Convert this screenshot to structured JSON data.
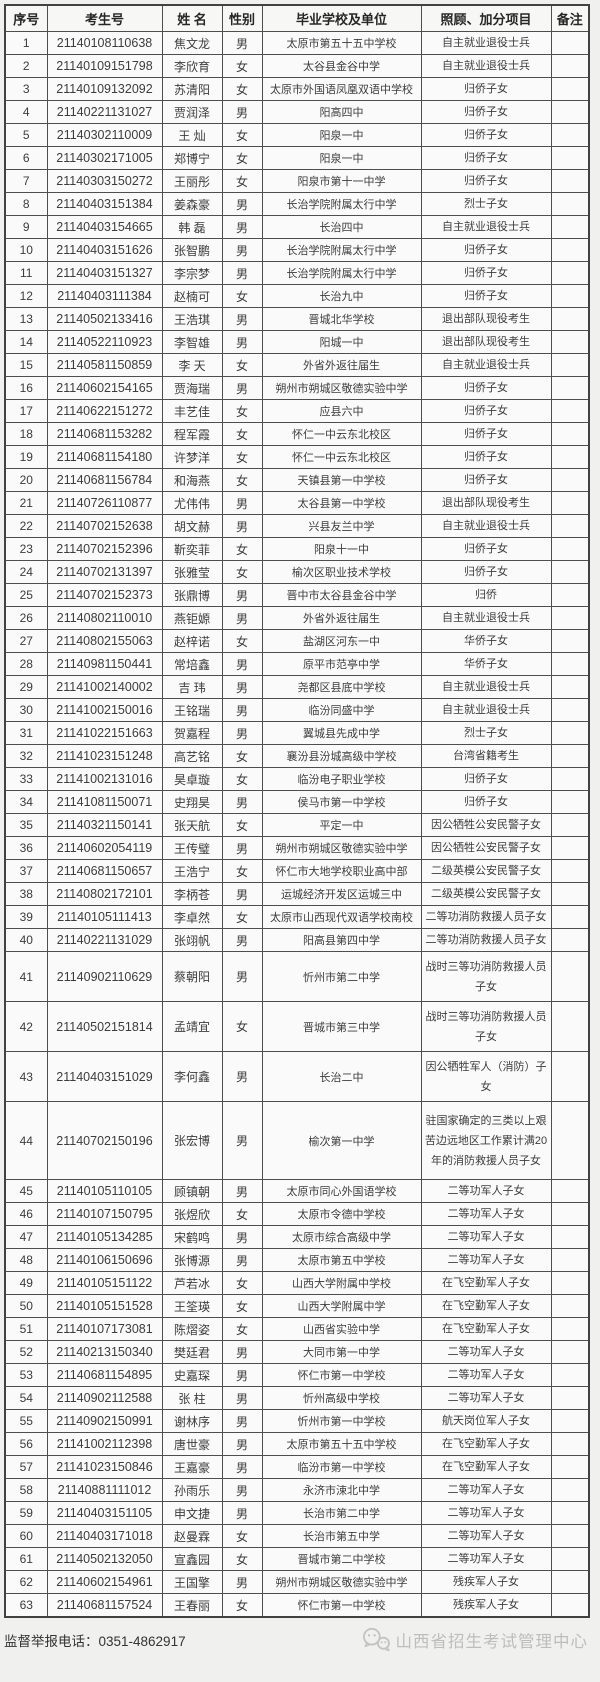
{
  "table": {
    "keys": [
      "no",
      "id",
      "name",
      "gender",
      "school",
      "bonus",
      "note"
    ],
    "headers": [
      "序号",
      "考生号",
      "姓 名",
      "性别",
      "毕业学校及单位",
      "照顾、加分项目",
      "备注"
    ],
    "rows": [
      {
        "no": "1",
        "id": "21140108110638",
        "name": "焦文龙",
        "gender": "男",
        "school": "太原市第五十五中学校",
        "bonus": "自主就业退役士兵",
        "note": ""
      },
      {
        "no": "2",
        "id": "21140109151798",
        "name": "李欣育",
        "gender": "女",
        "school": "太谷县金谷中学",
        "bonus": "自主就业退役士兵",
        "note": ""
      },
      {
        "no": "3",
        "id": "21140109132092",
        "name": "苏清阳",
        "gender": "女",
        "school": "太原市外国语凤凰双语中学校",
        "bonus": "归侨子女",
        "note": ""
      },
      {
        "no": "4",
        "id": "21140221131027",
        "name": "贾润泽",
        "gender": "男",
        "school": "阳高四中",
        "bonus": "归侨子女",
        "note": ""
      },
      {
        "no": "5",
        "id": "21140302110009",
        "name": "王 灿",
        "gender": "女",
        "school": "阳泉一中",
        "bonus": "归侨子女",
        "note": ""
      },
      {
        "no": "6",
        "id": "21140302171005",
        "name": "郑博宁",
        "gender": "女",
        "school": "阳泉一中",
        "bonus": "归侨子女",
        "note": ""
      },
      {
        "no": "7",
        "id": "21140303150272",
        "name": "王丽彤",
        "gender": "女",
        "school": "阳泉市第十一中学",
        "bonus": "归侨子女",
        "note": ""
      },
      {
        "no": "8",
        "id": "21140403151384",
        "name": "姜森豪",
        "gender": "男",
        "school": "长治学院附属太行中学",
        "bonus": "烈士子女",
        "note": ""
      },
      {
        "no": "9",
        "id": "21140403154665",
        "name": "韩 磊",
        "gender": "男",
        "school": "长治四中",
        "bonus": "自主就业退役士兵",
        "note": ""
      },
      {
        "no": "10",
        "id": "21140403151626",
        "name": "张智鹏",
        "gender": "男",
        "school": "长治学院附属太行中学",
        "bonus": "归侨子女",
        "note": ""
      },
      {
        "no": "11",
        "id": "21140403151327",
        "name": "李宗梦",
        "gender": "男",
        "school": "长治学院附属太行中学",
        "bonus": "归侨子女",
        "note": ""
      },
      {
        "no": "12",
        "id": "21140403111384",
        "name": "赵楠可",
        "gender": "女",
        "school": "长治九中",
        "bonus": "归侨子女",
        "note": ""
      },
      {
        "no": "13",
        "id": "21140502133416",
        "name": "王浩琪",
        "gender": "男",
        "school": "晋城北华学校",
        "bonus": "退出部队现役考生",
        "note": ""
      },
      {
        "no": "14",
        "id": "21140522110923",
        "name": "李智雄",
        "gender": "男",
        "school": "阳城一中",
        "bonus": "退出部队现役考生",
        "note": ""
      },
      {
        "no": "15",
        "id": "21140581150859",
        "name": "李 天",
        "gender": "女",
        "school": "外省外返往届生",
        "bonus": "自主就业退役士兵",
        "note": ""
      },
      {
        "no": "16",
        "id": "21140602154165",
        "name": "贾海瑞",
        "gender": "男",
        "school": "朔州市朔城区敬德实验中学",
        "bonus": "归侨子女",
        "note": ""
      },
      {
        "no": "17",
        "id": "21140622151272",
        "name": "丰艺佳",
        "gender": "女",
        "school": "应县六中",
        "bonus": "归侨子女",
        "note": ""
      },
      {
        "no": "18",
        "id": "21140681153282",
        "name": "程军霞",
        "gender": "女",
        "school": "怀仁一中云东北校区",
        "bonus": "归侨子女",
        "note": ""
      },
      {
        "no": "19",
        "id": "21140681154180",
        "name": "许梦洋",
        "gender": "女",
        "school": "怀仁一中云东北校区",
        "bonus": "归侨子女",
        "note": ""
      },
      {
        "no": "20",
        "id": "21140681156784",
        "name": "和海燕",
        "gender": "女",
        "school": "天镇县第一中学校",
        "bonus": "归侨子女",
        "note": ""
      },
      {
        "no": "21",
        "id": "21140726110877",
        "name": "尤伟伟",
        "gender": "男",
        "school": "太谷县第一中学校",
        "bonus": "退出部队现役考生",
        "note": ""
      },
      {
        "no": "22",
        "id": "21140702152638",
        "name": "胡文赫",
        "gender": "男",
        "school": "兴县友兰中学",
        "bonus": "自主就业退役士兵",
        "note": ""
      },
      {
        "no": "23",
        "id": "21140702152396",
        "name": "靳奕菲",
        "gender": "女",
        "school": "阳泉十一中",
        "bonus": "归侨子女",
        "note": ""
      },
      {
        "no": "24",
        "id": "21140702131397",
        "name": "张雅莹",
        "gender": "女",
        "school": "榆次区职业技术学校",
        "bonus": "归侨子女",
        "note": ""
      },
      {
        "no": "25",
        "id": "21140702152373",
        "name": "张鼎博",
        "gender": "男",
        "school": "晋中市太谷县金谷中学",
        "bonus": "归侨",
        "note": ""
      },
      {
        "no": "26",
        "id": "21140802110010",
        "name": "燕钜嫄",
        "gender": "男",
        "school": "外省外返往届生",
        "bonus": "自主就业退役士兵",
        "note": ""
      },
      {
        "no": "27",
        "id": "21140802155063",
        "name": "赵梓诺",
        "gender": "女",
        "school": "盐湖区河东一中",
        "bonus": "华侨子女",
        "note": ""
      },
      {
        "no": "28",
        "id": "21140981150441",
        "name": "常培鑫",
        "gender": "男",
        "school": "原平市范亭中学",
        "bonus": "华侨子女",
        "note": ""
      },
      {
        "no": "29",
        "id": "21141002140002",
        "name": "吉 玮",
        "gender": "男",
        "school": "尧都区县底中学校",
        "bonus": "自主就业退役士兵",
        "note": ""
      },
      {
        "no": "30",
        "id": "21141002150016",
        "name": "王铭瑞",
        "gender": "男",
        "school": "临汾同盛中学",
        "bonus": "自主就业退役士兵",
        "note": ""
      },
      {
        "no": "31",
        "id": "21141022151663",
        "name": "贺嘉程",
        "gender": "男",
        "school": "翼城县先成中学",
        "bonus": "烈士子女",
        "note": ""
      },
      {
        "no": "32",
        "id": "21141023151248",
        "name": "高艺铭",
        "gender": "女",
        "school": "襄汾县汾城高级中学校",
        "bonus": "台湾省籍考生",
        "note": ""
      },
      {
        "no": "33",
        "id": "21141002131016",
        "name": "昊卓璇",
        "gender": "女",
        "school": "临汾电子职业学校",
        "bonus": "归侨子女",
        "note": ""
      },
      {
        "no": "34",
        "id": "21141081150071",
        "name": "史翔昊",
        "gender": "男",
        "school": "侯马市第一中学校",
        "bonus": "归侨子女",
        "note": ""
      },
      {
        "no": "35",
        "id": "21140321150141",
        "name": "张天航",
        "gender": "女",
        "school": "平定一中",
        "bonus": "因公牺牲公安民警子女",
        "note": ""
      },
      {
        "no": "36",
        "id": "21140602054119",
        "name": "王传璧",
        "gender": "男",
        "school": "朔州市朔城区敬德实验中学",
        "bonus": "因公牺牲公安民警子女",
        "note": ""
      },
      {
        "no": "37",
        "id": "21140681150657",
        "name": "王浩宁",
        "gender": "女",
        "school": "怀仁市大地学校职业高中部",
        "bonus": "二级英模公安民警子女",
        "note": ""
      },
      {
        "no": "38",
        "id": "21140802172101",
        "name": "李柄苍",
        "gender": "男",
        "school": "运城经济开发区运城三中",
        "bonus": "二级英模公安民警子女",
        "note": ""
      },
      {
        "no": "39",
        "id": "21140105111413",
        "name": "李卓然",
        "gender": "女",
        "school": "太原市山西现代双语学校南校",
        "bonus": "二等功消防救援人员子女",
        "note": ""
      },
      {
        "no": "40",
        "id": "21140221131029",
        "name": "张翊帆",
        "gender": "男",
        "school": "阳高县第四中学",
        "bonus": "二等功消防救援人员子女",
        "note": ""
      },
      {
        "no": "41",
        "id": "21140902110629",
        "name": "蔡朝阳",
        "gender": "男",
        "school": "忻州市第二中学",
        "bonus": "战时三等功消防救援人员子女",
        "note": ""
      },
      {
        "no": "42",
        "id": "21140502151814",
        "name": "孟靖宜",
        "gender": "女",
        "school": "晋城市第三中学",
        "bonus": "战时三等功消防救援人员子女",
        "note": ""
      },
      {
        "no": "43",
        "id": "21140403151029",
        "name": "李何鑫",
        "gender": "男",
        "school": "长治二中",
        "bonus": "因公牺牲军人（消防）子女",
        "note": ""
      },
      {
        "no": "44",
        "id": "21140702150196",
        "name": "张宏博",
        "gender": "男",
        "school": "榆次第一中学",
        "bonus": "驻国家确定的三类以上艰苦边远地区工作累计满20年的消防救援人员子女",
        "note": ""
      },
      {
        "no": "45",
        "id": "21140105110105",
        "name": "顾镇朝",
        "gender": "男",
        "school": "太原市同心外国语学校",
        "bonus": "二等功军人子女",
        "note": ""
      },
      {
        "no": "46",
        "id": "21140107150795",
        "name": "张煜欣",
        "gender": "女",
        "school": "太原市令德中学校",
        "bonus": "二等功军人子女",
        "note": ""
      },
      {
        "no": "47",
        "id": "21140105134285",
        "name": "宋鹤鸣",
        "gender": "男",
        "school": "太原市综合高级中学",
        "bonus": "二等功军人子女",
        "note": ""
      },
      {
        "no": "48",
        "id": "21140106150696",
        "name": "张博源",
        "gender": "男",
        "school": "太原市第五中学校",
        "bonus": "二等功军人子女",
        "note": ""
      },
      {
        "no": "49",
        "id": "21140105151122",
        "name": "芦若冰",
        "gender": "女",
        "school": "山西大学附属中学校",
        "bonus": "在飞空勤军人子女",
        "note": ""
      },
      {
        "no": "50",
        "id": "21140105151528",
        "name": "王筌瑛",
        "gender": "女",
        "school": "山西大学附属中学",
        "bonus": "在飞空勤军人子女",
        "note": ""
      },
      {
        "no": "51",
        "id": "21140107173081",
        "name": "陈熠姿",
        "gender": "女",
        "school": "山西省实验中学",
        "bonus": "在飞空勤军人子女",
        "note": ""
      },
      {
        "no": "52",
        "id": "21140213150340",
        "name": "樊廷君",
        "gender": "男",
        "school": "大同市第一中学",
        "bonus": "二等功军人子女",
        "note": ""
      },
      {
        "no": "53",
        "id": "21140681154895",
        "name": "史嘉琛",
        "gender": "男",
        "school": "怀仁市第一中学校",
        "bonus": "二等功军人子女",
        "note": ""
      },
      {
        "no": "54",
        "id": "21140902112588",
        "name": "张 柱",
        "gender": "男",
        "school": "忻州高级中学校",
        "bonus": "二等功军人子女",
        "note": ""
      },
      {
        "no": "55",
        "id": "21140902150991",
        "name": "谢林序",
        "gender": "男",
        "school": "忻州市第一中学校",
        "bonus": "航天岗位军人子女",
        "note": ""
      },
      {
        "no": "56",
        "id": "21141002112398",
        "name": "唐世豪",
        "gender": "男",
        "school": "太原市第五十五中学校",
        "bonus": "在飞空勤军人子女",
        "note": ""
      },
      {
        "no": "57",
        "id": "21141023150846",
        "name": "王嘉豪",
        "gender": "男",
        "school": "临汾市第一中学校",
        "bonus": "在飞空勤军人子女",
        "note": ""
      },
      {
        "no": "58",
        "id": "21140881111012",
        "name": "孙雨乐",
        "gender": "男",
        "school": "永济市涑北中学",
        "bonus": "二等功军人子女",
        "note": ""
      },
      {
        "no": "59",
        "id": "21140403151105",
        "name": "申文捷",
        "gender": "男",
        "school": "长治市第二中学",
        "bonus": "二等功军人子女",
        "note": ""
      },
      {
        "no": "60",
        "id": "21140403171018",
        "name": "赵曼霖",
        "gender": "女",
        "school": "长治市第五中学",
        "bonus": "二等功军人子女",
        "note": ""
      },
      {
        "no": "61",
        "id": "21140502132050",
        "name": "宣鑫园",
        "gender": "女",
        "school": "晋城市第二中学校",
        "bonus": "二等功军人子女",
        "note": ""
      },
      {
        "no": "62",
        "id": "21140602154961",
        "name": "王国擎",
        "gender": "男",
        "school": "朔州市朔城区敬德实验中学",
        "bonus": "残疾军人子女",
        "note": ""
      },
      {
        "no": "63",
        "id": "21140681157524",
        "name": "王春丽",
        "gender": "女",
        "school": "怀仁市第一中学校",
        "bonus": "残疾军人子女",
        "note": ""
      }
    ]
  },
  "footer": {
    "phone": "监督举报电话：0351-4862917",
    "org": "山西省招生考试管理中心"
  },
  "colors": {
    "page_bg": "#f0f1ef",
    "cell_bg": "#fafafa",
    "border": "#4e4e4e",
    "text": "#3c3c3c",
    "watermark": "#bdbdbd"
  }
}
